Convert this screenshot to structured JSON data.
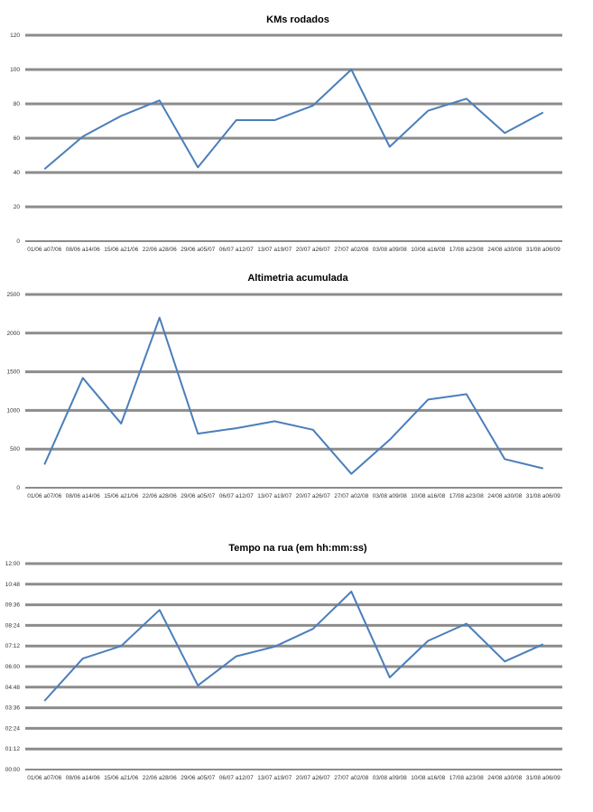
{
  "colors": {
    "line": "#4a7ebb",
    "grid": "#8c8c8c"
  },
  "categories": [
    "01/06 a07/06",
    "08/06 a14/06",
    "15/06 a21/06",
    "22/06 a28/06",
    "29/06 a05/07",
    "06/07 a12/07",
    "13/07 a19/07",
    "20/07 a26/07",
    "27/07 a02/08",
    "03/08 a09/08",
    "10/08 a16/08",
    "17/08 a23/08",
    "24/08 a30/08",
    "31/08 a06/09"
  ],
  "chart_data": [
    {
      "type": "line",
      "title": "KMs rodados",
      "xlabel": "",
      "ylabel": "",
      "ylim": [
        0,
        120
      ],
      "yticks": [
        "0",
        "20",
        "40",
        "60",
        "80",
        "100",
        "120"
      ],
      "values": [
        42,
        61,
        73,
        82,
        43,
        70.5,
        70.5,
        79,
        100,
        55,
        76,
        83,
        63,
        75
      ]
    },
    {
      "type": "line",
      "title": "Altimetria acumulada",
      "xlabel": "",
      "ylabel": "",
      "ylim": [
        0,
        2500
      ],
      "yticks": [
        "0",
        "500",
        "1000",
        "1500",
        "2000",
        "2500"
      ],
      "values": [
        300,
        1420,
        830,
        2200,
        700,
        770,
        860,
        750,
        180,
        620,
        1140,
        1210,
        370,
        250
      ]
    },
    {
      "type": "line",
      "title": "Tempo na rua (em hh:mm:ss)",
      "xlabel": "",
      "ylabel": "",
      "ylim": [
        0,
        12
      ],
      "unit": "hours",
      "yticks": [
        "00:00",
        "01:12",
        "02:24",
        "03:36",
        "04:48",
        "06:00",
        "07:12",
        "08:24",
        "09:36",
        "10:48",
        "12:00"
      ],
      "values": [
        4.0,
        6.47,
        7.2,
        9.3,
        4.9,
        6.6,
        7.16,
        8.2,
        10.37,
        5.37,
        7.5,
        8.5,
        6.3,
        7.3
      ]
    }
  ]
}
